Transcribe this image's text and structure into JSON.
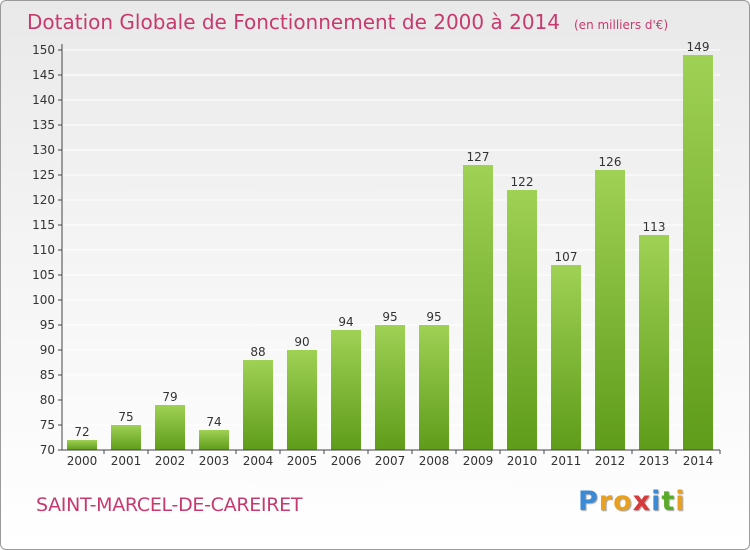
{
  "header": {
    "title": "Dotation Globale de Fonctionnement de 2000 à 2014",
    "subtitle": "(en milliers d'€)"
  },
  "footer": {
    "commune": "SAINT-MARCEL-DE-CAREIRET",
    "logo_letters": [
      "P",
      "r",
      "o",
      "x",
      "i",
      "t",
      "i"
    ],
    "logo_colors": [
      "#3a8ad6",
      "#e8a020",
      "#e8a020",
      "#d63a3a",
      "#3a8ad6",
      "#5aaa2a",
      "#e8a020"
    ]
  },
  "colors": {
    "bar_light": "#9fd155",
    "bar_dark": "#5f9c1a",
    "title": "#c83a6e",
    "axis": "#444444",
    "grid": "#ffffff"
  },
  "chart_data": {
    "type": "bar",
    "title": "Dotation Globale de Fonctionnement de 2000 à 2014",
    "subtitle": "(en milliers d'€)",
    "categories": [
      "2000",
      "2001",
      "2002",
      "2003",
      "2004",
      "2005",
      "2006",
      "2007",
      "2008",
      "2009",
      "2010",
      "2011",
      "2012",
      "2013",
      "2014"
    ],
    "values": [
      72,
      75,
      79,
      74,
      88,
      90,
      94,
      95,
      95,
      127,
      122,
      107,
      126,
      113,
      149
    ],
    "ylim": [
      70,
      150
    ],
    "yticks": [
      70,
      75,
      80,
      85,
      90,
      95,
      100,
      105,
      110,
      115,
      120,
      125,
      130,
      135,
      140,
      145,
      150
    ],
    "grid": true,
    "data_labels": true
  }
}
